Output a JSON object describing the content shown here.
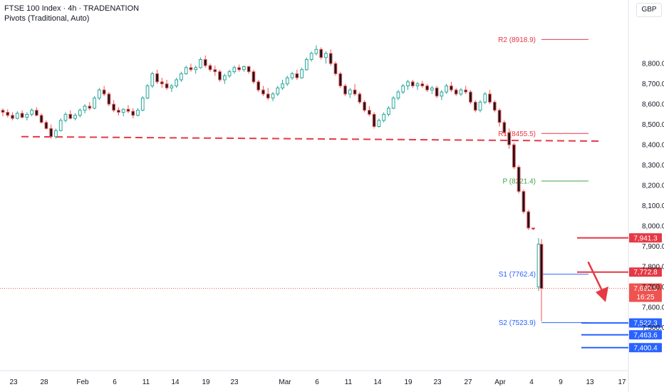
{
  "header": {
    "symbol_line": "FTSE 100 Index · 4h · TRADENATION",
    "indicator_line": "Pivots (Traditional, Auto)",
    "currency": "GBP"
  },
  "colors": {
    "up": "#26a69a",
    "down": "#ef5350",
    "resistance": "#e53945",
    "support": "#2962ff",
    "pivot": "#43a047",
    "candle_up_body": "#ffffff",
    "candle_down_body": "#131722"
  },
  "chart_data": {
    "type": "candlestick",
    "title": "",
    "ylim": [
      7340,
      9050
    ],
    "y_ticks": [
      {
        "value": 8800,
        "label": "8,800.0"
      },
      {
        "value": 8700,
        "label": "8,700.0"
      },
      {
        "value": 8600,
        "label": "8,600.0"
      },
      {
        "value": 8500,
        "label": "8,500.0"
      },
      {
        "value": 8400,
        "label": "8,400.0"
      },
      {
        "value": 8300,
        "label": "8,300.0"
      },
      {
        "value": 8200,
        "label": "8,200.0"
      },
      {
        "value": 8100,
        "label": "8,100.0"
      },
      {
        "value": 8000,
        "label": "8,000.0"
      },
      {
        "value": 7900,
        "label": "7,900.0"
      },
      {
        "value": 7800,
        "label": "7,800.0"
      },
      {
        "value": 7700,
        "label": "7,700.0"
      },
      {
        "value": 7600,
        "label": "7,600.0"
      },
      {
        "value": 7500,
        "label": "7,500.0"
      }
    ],
    "x_ticks": [
      "23",
      "28",
      "Feb",
      "6",
      "11",
      "14",
      "19",
      "23",
      "Mar",
      "6",
      "11",
      "14",
      "19",
      "23",
      "27",
      "Apr",
      "4",
      "9",
      "13",
      "17"
    ],
    "pivots": [
      {
        "name": "R2",
        "label": "R2 (8918.9)",
        "value": 8918.9
      },
      {
        "name": "R1",
        "label": "R1 (8455.5)",
        "value": 8455.5
      },
      {
        "name": "P",
        "label": "P (8221.4)",
        "value": 8221.4
      },
      {
        "name": "S1",
        "label": "S1 (7762.4)",
        "value": 7762.4
      },
      {
        "name": "S2",
        "label": "S2 (7523.9)",
        "value": 7523.9
      }
    ],
    "trendline": {
      "from_value": 8440,
      "to_value": 8418,
      "style": "dashed"
    },
    "levels": [
      {
        "value": 7941.3,
        "label": "7,941.3",
        "kind": "resistance"
      },
      {
        "value": 7772.8,
        "label": "7,772.8",
        "kind": "resistance"
      },
      {
        "value": 7522.3,
        "label": "7,522.3",
        "kind": "support"
      },
      {
        "value": 7463.6,
        "label": "7,463.6",
        "kind": "support"
      },
      {
        "value": 7400.4,
        "label": "7,400.4",
        "kind": "support"
      }
    ],
    "last_price": {
      "value": 7692.5,
      "label": "7,692.5",
      "countdown": "16:25"
    },
    "annotation_arrow": {
      "from_value": 7820,
      "to_value": 7625,
      "direction": "down"
    },
    "candles": [
      [
        8570,
        8580,
        8540,
        8560
      ],
      [
        8560,
        8575,
        8535,
        8545
      ],
      [
        8545,
        8560,
        8520,
        8530
      ],
      [
        8530,
        8565,
        8525,
        8555
      ],
      [
        8555,
        8570,
        8530,
        8535
      ],
      [
        8535,
        8560,
        8520,
        8550
      ],
      [
        8550,
        8580,
        8540,
        8570
      ],
      [
        8570,
        8585,
        8540,
        8545
      ],
      [
        8545,
        8555,
        8505,
        8510
      ],
      [
        8510,
        8520,
        8475,
        8480
      ],
      [
        8480,
        8500,
        8430,
        8440
      ],
      [
        8440,
        8480,
        8430,
        8470
      ],
      [
        8470,
        8530,
        8465,
        8520
      ],
      [
        8520,
        8560,
        8510,
        8550
      ],
      [
        8550,
        8570,
        8525,
        8530
      ],
      [
        8530,
        8555,
        8520,
        8545
      ],
      [
        8545,
        8580,
        8535,
        8570
      ],
      [
        8570,
        8600,
        8555,
        8590
      ],
      [
        8590,
        8610,
        8570,
        8580
      ],
      [
        8580,
        8640,
        8575,
        8630
      ],
      [
        8630,
        8680,
        8620,
        8670
      ],
      [
        8670,
        8690,
        8640,
        8650
      ],
      [
        8650,
        8660,
        8590,
        8600
      ],
      [
        8600,
        8620,
        8560,
        8570
      ],
      [
        8570,
        8585,
        8545,
        8560
      ],
      [
        8560,
        8580,
        8540,
        8575
      ],
      [
        8575,
        8595,
        8555,
        8565
      ],
      [
        8565,
        8580,
        8530,
        8545
      ],
      [
        8545,
        8580,
        8540,
        8570
      ],
      [
        8570,
        8640,
        8565,
        8630
      ],
      [
        8630,
        8700,
        8625,
        8690
      ],
      [
        8690,
        8760,
        8680,
        8750
      ],
      [
        8750,
        8770,
        8700,
        8710
      ],
      [
        8710,
        8730,
        8680,
        8700
      ],
      [
        8700,
        8720,
        8670,
        8680
      ],
      [
        8680,
        8700,
        8660,
        8690
      ],
      [
        8690,
        8730,
        8680,
        8720
      ],
      [
        8720,
        8760,
        8710,
        8750
      ],
      [
        8750,
        8790,
        8745,
        8780
      ],
      [
        8780,
        8800,
        8760,
        8770
      ],
      [
        8770,
        8790,
        8750,
        8780
      ],
      [
        8780,
        8830,
        8775,
        8820
      ],
      [
        8820,
        8840,
        8780,
        8790
      ],
      [
        8790,
        8800,
        8760,
        8770
      ],
      [
        8770,
        8790,
        8740,
        8760
      ],
      [
        8760,
        8770,
        8710,
        8720
      ],
      [
        8720,
        8750,
        8700,
        8740
      ],
      [
        8740,
        8770,
        8730,
        8760
      ],
      [
        8760,
        8790,
        8750,
        8780
      ],
      [
        8780,
        8795,
        8760,
        8770
      ],
      [
        8770,
        8790,
        8760,
        8785
      ],
      [
        8785,
        8790,
        8750,
        8760
      ],
      [
        8760,
        8770,
        8700,
        8710
      ],
      [
        8710,
        8720,
        8660,
        8670
      ],
      [
        8670,
        8690,
        8640,
        8650
      ],
      [
        8650,
        8680,
        8620,
        8630
      ],
      [
        8630,
        8660,
        8615,
        8650
      ],
      [
        8650,
        8690,
        8640,
        8680
      ],
      [
        8680,
        8720,
        8670,
        8700
      ],
      [
        8700,
        8740,
        8690,
        8730
      ],
      [
        8730,
        8760,
        8720,
        8750
      ],
      [
        8750,
        8770,
        8720,
        8730
      ],
      [
        8730,
        8780,
        8725,
        8770
      ],
      [
        8770,
        8830,
        8765,
        8820
      ],
      [
        8820,
        8860,
        8810,
        8850
      ],
      [
        8850,
        8890,
        8840,
        8870
      ],
      [
        8870,
        8880,
        8820,
        8830
      ],
      [
        8830,
        8860,
        8800,
        8850
      ],
      [
        8850,
        8870,
        8790,
        8800
      ],
      [
        8800,
        8810,
        8740,
        8750
      ],
      [
        8750,
        8760,
        8680,
        8690
      ],
      [
        8690,
        8700,
        8640,
        8650
      ],
      [
        8650,
        8680,
        8630,
        8670
      ],
      [
        8670,
        8700,
        8640,
        8650
      ],
      [
        8650,
        8660,
        8600,
        8610
      ],
      [
        8610,
        8620,
        8560,
        8570
      ],
      [
        8570,
        8590,
        8540,
        8550
      ],
      [
        8550,
        8560,
        8480,
        8490
      ],
      [
        8490,
        8530,
        8485,
        8520
      ],
      [
        8520,
        8560,
        8510,
        8550
      ],
      [
        8550,
        8590,
        8540,
        8580
      ],
      [
        8580,
        8640,
        8575,
        8630
      ],
      [
        8630,
        8670,
        8620,
        8660
      ],
      [
        8660,
        8700,
        8650,
        8690
      ],
      [
        8690,
        8720,
        8670,
        8710
      ],
      [
        8710,
        8720,
        8680,
        8690
      ],
      [
        8690,
        8710,
        8670,
        8700
      ],
      [
        8700,
        8715,
        8680,
        8690
      ],
      [
        8690,
        8700,
        8660,
        8670
      ],
      [
        8670,
        8690,
        8650,
        8680
      ],
      [
        8680,
        8690,
        8630,
        8640
      ],
      [
        8640,
        8670,
        8620,
        8660
      ],
      [
        8660,
        8700,
        8650,
        8690
      ],
      [
        8690,
        8710,
        8660,
        8670
      ],
      [
        8670,
        8680,
        8640,
        8650
      ],
      [
        8650,
        8680,
        8640,
        8670
      ],
      [
        8670,
        8690,
        8650,
        8660
      ],
      [
        8660,
        8670,
        8600,
        8610
      ],
      [
        8610,
        8620,
        8560,
        8570
      ],
      [
        8570,
        8620,
        8560,
        8610
      ],
      [
        8610,
        8660,
        8600,
        8650
      ],
      [
        8650,
        8670,
        8600,
        8610
      ],
      [
        8610,
        8620,
        8560,
        8570
      ],
      [
        8570,
        8580,
        8490,
        8510
      ],
      [
        8510,
        8520,
        8450,
        8460
      ],
      [
        8460,
        8480,
        8380,
        8400
      ],
      [
        8400,
        8410,
        8280,
        8290
      ],
      [
        8290,
        8300,
        8160,
        8170
      ],
      [
        8170,
        8180,
        8060,
        8070
      ],
      [
        8070,
        8080,
        7980,
        7990
      ],
      [
        7990,
        7990,
        7980,
        7985
      ],
      [
        7700,
        7940,
        7680,
        7910
      ],
      [
        7910,
        7935,
        7530,
        7692.5
      ]
    ]
  }
}
